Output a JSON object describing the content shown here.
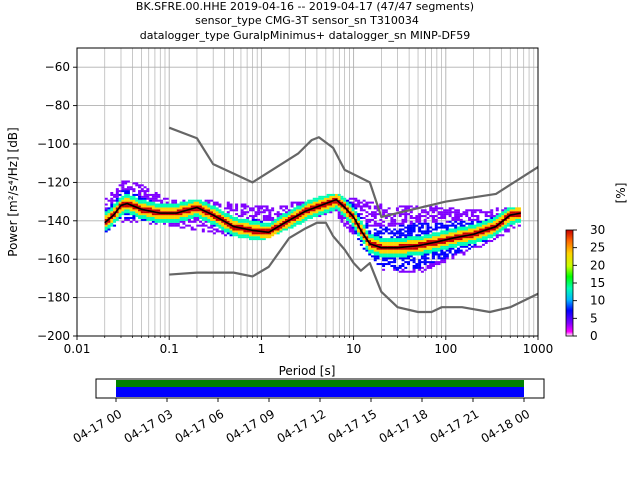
{
  "chart_data": [
    {
      "type": "heatmap",
      "kind": "probabilistic power spectral density",
      "title_lines": [
        "BK.SFRE.00.HHE   2019-04-16 -- 2019-04-17  (47/47 segments)",
        "sensor_type CMG-3T sensor_sn T310034",
        "datalogger_type GuralpMinimus+ datalogger_sn MINP-DF59"
      ],
      "xlabel": "Period [s]",
      "ylabel": "Power [m²/s⁴/Hz] [dB]",
      "x_scale": "log",
      "xlim": [
        0.01,
        1000
      ],
      "ylim": [
        -200,
        -50
      ],
      "x_ticks": [
        0.01,
        0.1,
        1,
        10,
        100,
        1000
      ],
      "x_tick_labels": [
        "0.01",
        "0.1",
        "1",
        "10",
        "100",
        "1000"
      ],
      "y_ticks": [
        -200,
        -180,
        -160,
        -140,
        -120,
        -100,
        -80,
        -60
      ],
      "y_tick_labels": [
        "−200",
        "−180",
        "−160",
        "−140",
        "−120",
        "−100",
        "−80",
        "−60"
      ],
      "grid": true,
      "colorbar": {
        "label": "[%]",
        "range": [
          0,
          30
        ],
        "ticks": [
          0,
          5,
          10,
          15,
          20,
          25,
          30
        ],
        "tick_labels": [
          "0",
          "5",
          "10",
          "15",
          "20",
          "25",
          "30"
        ],
        "colormap": [
          "#ffffff",
          "#ff00ff",
          "#8000ff",
          "#0000ff",
          "#00b4ff",
          "#00ffb4",
          "#00ff00",
          "#c8ff00",
          "#ffd200",
          "#ff6400",
          "#c80000"
        ]
      },
      "series": [
        {
          "role": "mean",
          "color": "#000000",
          "x": [
            0.02,
            0.025,
            0.03,
            0.035,
            0.05,
            0.08,
            0.12,
            0.2,
            0.3,
            0.5,
            0.8,
            1.2,
            1.8,
            3,
            5,
            6.5,
            8,
            10,
            12,
            15,
            20,
            30,
            50,
            80,
            120,
            200,
            350,
            500,
            650
          ],
          "y": [
            -141,
            -137,
            -132,
            -131,
            -134,
            -136,
            -136,
            -133,
            -137,
            -143,
            -145,
            -146,
            -141,
            -135,
            -131,
            -129,
            -133,
            -138,
            -145,
            -152,
            -154,
            -154,
            -153,
            -151,
            -149,
            -147,
            -143,
            -137,
            -136
          ]
        },
        {
          "role": "noise-model-high",
          "color": "#666666",
          "x": [
            0.1,
            0.2,
            0.3,
            0.8,
            2.5,
            3.5,
            4.2,
            6,
            8,
            15,
            20,
            100,
            350,
            1000
          ],
          "y": [
            -91.5,
            -97,
            -110.5,
            -120,
            -105,
            -98,
            -96.5,
            -102,
            -113.5,
            -120,
            -138,
            -130,
            -126,
            -112
          ]
        },
        {
          "role": "noise-model-low",
          "color": "#666666",
          "x": [
            0.1,
            0.2,
            0.5,
            0.8,
            1.2,
            2,
            3,
            4,
            5,
            6,
            8,
            10,
            12,
            15,
            20,
            30,
            50,
            70,
            90,
            150,
            300,
            500,
            1000
          ],
          "y": [
            -168,
            -167,
            -167,
            -169,
            -164,
            -149,
            -144,
            -141,
            -141,
            -148,
            -155,
            -162,
            -166,
            -162,
            -177,
            -185,
            -187.5,
            -187.5,
            -185,
            -185,
            -187.5,
            -185,
            -178
          ]
        }
      ],
      "density_bands": [
        {
          "x": 0.02,
          "y_range": [
            -146,
            -128
          ]
        },
        {
          "x": 0.035,
          "y_range": [
            -140,
            -118
          ]
        },
        {
          "x": 0.1,
          "y_range": [
            -142,
            -129
          ]
        },
        {
          "x": 0.3,
          "y_range": [
            -146,
            -130
          ]
        },
        {
          "x": 1,
          "y_range": [
            -150,
            -133
          ]
        },
        {
          "x": 3,
          "y_range": [
            -140,
            -130
          ]
        },
        {
          "x": 6,
          "y_range": [
            -135,
            -126
          ]
        },
        {
          "x": 20,
          "y_range": [
            -165,
            -132
          ]
        },
        {
          "x": 50,
          "y_range": [
            -167,
            -132
          ]
        },
        {
          "x": 200,
          "y_range": [
            -155,
            -135
          ]
        },
        {
          "x": 600,
          "y_range": [
            -143,
            -133
          ]
        }
      ]
    },
    {
      "type": "timeline",
      "kind": "data coverage",
      "x_tick_labels": [
        "04-17 00",
        "04-17 03",
        "04-17 06",
        "04-17 09",
        "04-17 12",
        "04-17 15",
        "04-17 18",
        "04-17 21",
        "04-18 00"
      ],
      "bars": [
        {
          "role": "available",
          "color": "#008000"
        },
        {
          "role": "used",
          "color": "#0000ff"
        }
      ]
    }
  ]
}
